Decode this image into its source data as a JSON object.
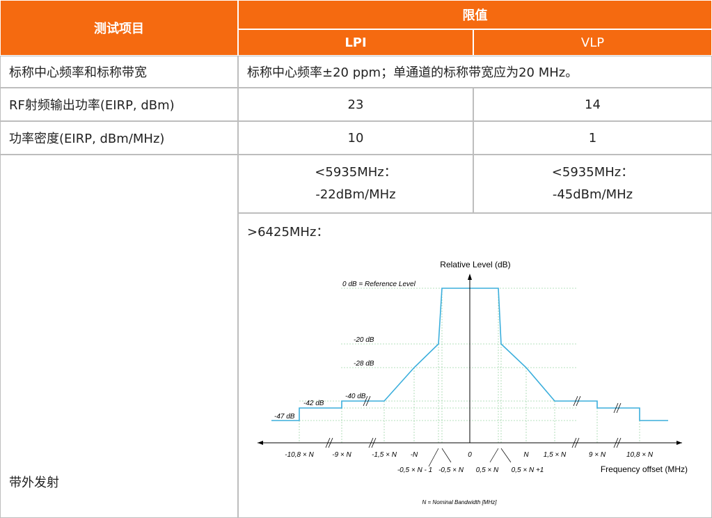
{
  "header": {
    "test_item": "测试项目",
    "limit": "限值",
    "lpi": "LPI",
    "vlp": "VLP"
  },
  "rows": {
    "freq_bw": {
      "label": "标称中心频率和标称带宽",
      "value": "标称中心频率±20 ppm；单通道的标称带宽应为20 MHz。"
    },
    "rf_power": {
      "label": "RF射频输出功率(EIRP, dBm)",
      "lpi": "23",
      "vlp": "14"
    },
    "psd": {
      "label": "功率密度(EIRP, dBm/MHz)",
      "lpi": "10",
      "vlp": "1"
    },
    "oob": {
      "label": "带外发射",
      "lpi_line1": "<5935MHz：",
      "lpi_line2": "-22dBm/MHz",
      "vlp_line1": "<5935MHz：",
      "vlp_line2": "-45dBm/MHz",
      "upper_label": ">6425MHz："
    }
  },
  "chart_data": {
    "type": "line",
    "title": "",
    "ylabel": "Relative Level (dB)",
    "xlabel": "Frequency offset (MHz)",
    "footnote": "N = Nominal Bandwidth [MHz]",
    "level_labels": [
      "0 dB = Reference Level",
      "-20 dB",
      "-28 dB",
      "-40 dB",
      "-42 dB",
      "-47 dB"
    ],
    "x_tick_labels": [
      "-10,8 × N",
      "-9 × N",
      "-1,5 × N",
      "-N",
      "0",
      "N",
      "1,5 × N",
      "9 × N",
      "10,8 × N"
    ],
    "inner_tick_labels": [
      "-0,5 × N - 1",
      "-0,5 × N",
      "0,5 × N",
      "0,5 × N +1"
    ],
    "mask_points_right": [
      {
        "x": "0,5 × N",
        "y": 0
      },
      {
        "x": "0,5 × N +1",
        "y": -20
      },
      {
        "x": "N",
        "y": -28
      },
      {
        "x": "1,5 × N",
        "y": -40
      },
      {
        "x": "9 × N",
        "y": -42
      },
      {
        "x": "10,8 × N",
        "y": -47
      }
    ],
    "colors": {
      "mask": "#3aaedc",
      "guide": "#9fd6a8",
      "axis": "#000000"
    }
  }
}
